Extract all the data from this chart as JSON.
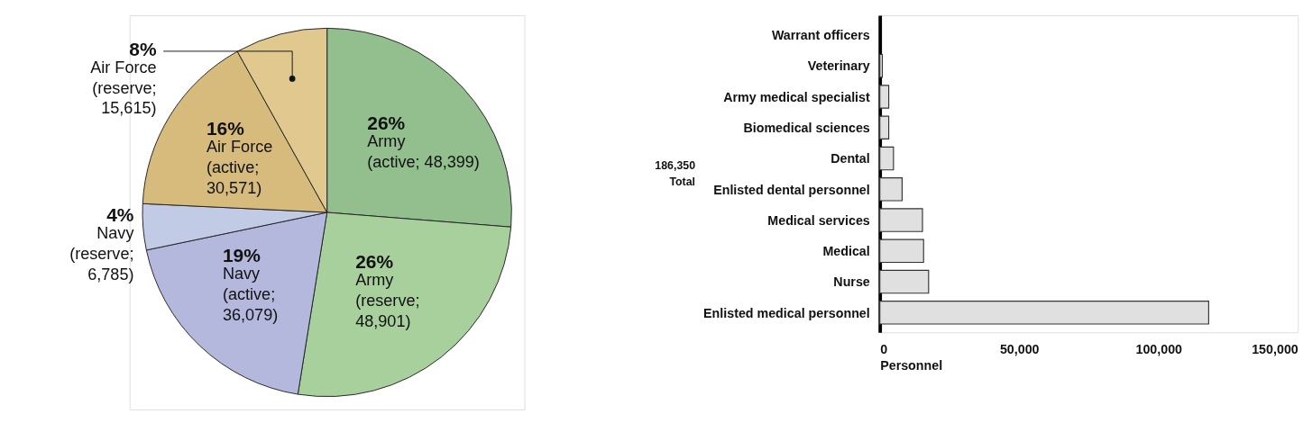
{
  "chart_data": [
    {
      "type": "pie",
      "categories": [
        "Army\n(active; 48,399)",
        "Army\n(reserve;\n48,901)",
        "Navy\n(active;\n36,079)",
        "Navy\n(reserve;\n6,785)",
        "Air Force\n(active;\n30,571)",
        "Air Force\n(reserve;\n15,615)"
      ],
      "values": [
        26,
        26,
        19,
        4,
        16,
        8
      ],
      "colors": [
        "#93bf8f",
        "#a8d09d",
        "#b3b8dc",
        "#c2cbe6",
        "#d6bb7c",
        "#e0c88e"
      ],
      "value_labels": [
        "26%",
        "26%",
        "19%",
        "4%",
        "16%",
        "8%"
      ]
    },
    {
      "type": "bar",
      "orientation": "horizontal",
      "categories": [
        "Warrant officers",
        "Veterinary",
        "Army medical specialist",
        "Biomedical sciences",
        "Dental",
        "Enlisted dental personnel",
        "Medical services",
        "Medical",
        "Nurse",
        "Enlisted medical personnel"
      ],
      "values": [
        null,
        900,
        3200,
        3200,
        4900,
        8000,
        15300,
        15700,
        17500,
        118000
      ],
      "color": "#e0e0e0",
      "xlim": [
        0,
        150000
      ],
      "xticks": [
        0,
        {
          "value": 50000,
          "label": "50,000"
        },
        {
          "value": 100000,
          "label": "100,000"
        },
        {
          "value": 150000,
          "label": "150,000"
        }
      ],
      "xlabel": "Personnel",
      "annotations": [
        "186,350\nTotal"
      ],
      "grid": false
    }
  ]
}
